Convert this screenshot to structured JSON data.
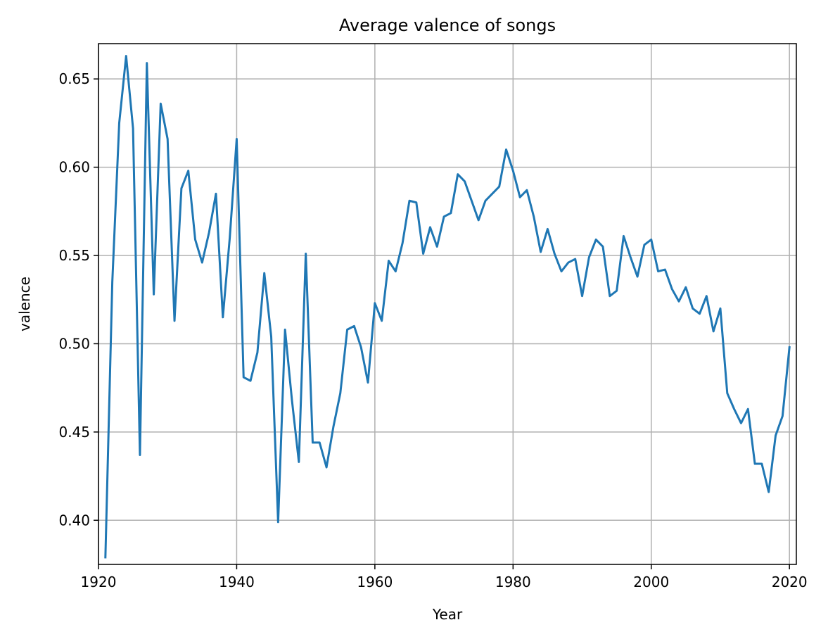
{
  "chart_data": {
    "type": "line",
    "title": "Average valence of songs",
    "xlabel": "Year",
    "ylabel": "valence",
    "xlim": [
      1920,
      2021
    ],
    "ylim": [
      0.375,
      0.67
    ],
    "grid": true,
    "xticks": [
      1920,
      1940,
      1960,
      1980,
      2000,
      2020
    ],
    "yticks": [
      0.4,
      0.45,
      0.5,
      0.55,
      0.6,
      0.65
    ],
    "line_color": "#1f77b4",
    "grid_color": "#b0b0b0",
    "series": [
      {
        "x": [
          1921,
          1922,
          1923,
          1924,
          1925,
          1926,
          1927,
          1928,
          1929,
          1930,
          1931,
          1932,
          1933,
          1934,
          1935,
          1936,
          1937,
          1938,
          1939,
          1940,
          1941,
          1942,
          1943,
          1944,
          1945,
          1946,
          1947,
          1948,
          1949,
          1950,
          1951,
          1952,
          1953,
          1954,
          1955,
          1956,
          1957,
          1958,
          1959,
          1960,
          1961,
          1962,
          1963,
          1964,
          1965,
          1966,
          1967,
          1968,
          1969,
          1970,
          1971,
          1972,
          1973,
          1974,
          1975,
          1976,
          1977,
          1978,
          1979,
          1980,
          1981,
          1982,
          1983,
          1984,
          1985,
          1986,
          1987,
          1988,
          1989,
          1990,
          1991,
          1992,
          1993,
          1994,
          1995,
          1996,
          1997,
          1998,
          1999,
          2000,
          2001,
          2002,
          2003,
          2004,
          2005,
          2006,
          2007,
          2008,
          2009,
          2010,
          2011,
          2012,
          2013,
          2014,
          2015,
          2016,
          2017,
          2018,
          2019,
          2020
        ],
        "y": [
          0.379,
          0.535,
          0.625,
          0.663,
          0.622,
          0.437,
          0.659,
          0.528,
          0.636,
          0.616,
          0.513,
          0.588,
          0.598,
          0.559,
          0.546,
          0.563,
          0.585,
          0.515,
          0.56,
          0.616,
          0.481,
          0.479,
          0.495,
          0.54,
          0.504,
          0.399,
          0.508,
          0.468,
          0.433,
          0.551,
          0.444,
          0.444,
          0.43,
          0.453,
          0.472,
          0.508,
          0.51,
          0.498,
          0.478,
          0.523,
          0.513,
          0.547,
          0.541,
          0.557,
          0.581,
          0.58,
          0.551,
          0.566,
          0.555,
          0.572,
          0.574,
          0.596,
          0.592,
          0.581,
          0.57,
          0.581,
          0.585,
          0.589,
          0.61,
          0.598,
          0.583,
          0.587,
          0.572,
          0.552,
          0.565,
          0.551,
          0.541,
          0.546,
          0.548,
          0.527,
          0.549,
          0.559,
          0.555,
          0.527,
          0.53,
          0.561,
          0.549,
          0.538,
          0.556,
          0.559,
          0.541,
          0.542,
          0.531,
          0.524,
          0.532,
          0.52,
          0.517,
          0.527,
          0.507,
          0.52,
          0.472,
          0.463,
          0.455,
          0.463,
          0.432,
          0.432,
          0.416,
          0.448,
          0.459,
          0.498
        ]
      }
    ]
  }
}
